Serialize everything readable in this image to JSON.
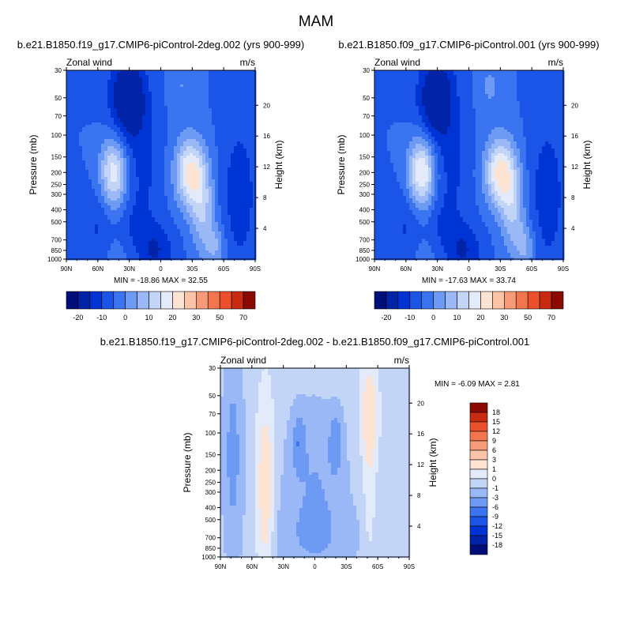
{
  "figure": {
    "title": "MAM"
  },
  "chart_data": [
    {
      "id": "p1",
      "type": "heatmap",
      "title": "b.e21.B1850.f19_g17.CMIP6-piControl-2deg.002 (yrs 900-999)",
      "left_label": "Zonal wind",
      "right_label": "m/s",
      "ylabel": "Pressure (mb)",
      "ylabel_right": "Height (km)",
      "x_ticks": [
        "90N",
        "60N",
        "30N",
        "0",
        "30S",
        "60S",
        "90S"
      ],
      "y_ticks": [
        "30",
        "50",
        "70",
        "100",
        "150",
        "200",
        "250",
        "300",
        "400",
        "500",
        "700",
        "850",
        "1000"
      ],
      "height_ticks": [
        "4",
        "8",
        "12",
        "16",
        "20"
      ],
      "stats": "MIN = -18.86   MAX = 32.55",
      "min": -18.86,
      "max": 32.55,
      "fields": [
        {
          "lat": 31,
          "p": 50,
          "sx": 12,
          "sy": 0.55,
          "a": -19
        },
        {
          "lat": 17,
          "p": 200,
          "sx": 12,
          "sy": 0.8,
          "a": -6
        },
        {
          "lat": 5,
          "p": 850,
          "sx": 12,
          "sy": 0.35,
          "a": -10
        },
        {
          "lat": 27,
          "p": 550,
          "sx": 10,
          "sy": 0.35,
          "a": -4
        },
        {
          "lat": 60,
          "p": 600,
          "sx": 10,
          "sy": 0.55,
          "a": -6
        },
        {
          "lat": -20,
          "p": 40,
          "sx": 8,
          "sy": 0.35,
          "a": 5
        },
        {
          "lat": -28,
          "p": 200,
          "sx": 10,
          "sy": 0.45,
          "a": 26
        },
        {
          "lat": -40,
          "p": 400,
          "sx": 8,
          "sy": 0.55,
          "a": 14
        },
        {
          "lat": -52,
          "p": 800,
          "sx": 7,
          "sy": 0.3,
          "a": 10
        },
        {
          "lat": -75,
          "p": 300,
          "sx": 12,
          "sy": 1.0,
          "a": -8
        },
        {
          "lat": 45,
          "p": 200,
          "sx": 9,
          "sy": 0.45,
          "a": 23
        },
        {
          "lat": 45,
          "p": 900,
          "sx": 14,
          "sy": 0.3,
          "a": 3
        }
      ],
      "background_value": -5.0,
      "colorbar": {
        "labels": [
          "-20",
          "-10",
          "0",
          "10",
          "20",
          "30",
          "50",
          "70"
        ],
        "levels": [
          -20,
          -15,
          -10,
          -5,
          0,
          5,
          10,
          15,
          20,
          25,
          30,
          40,
          50,
          60,
          70
        ],
        "colors": [
          "#000e7a",
          "#0023a8",
          "#0033d4",
          "#1a55e8",
          "#3a74f0",
          "#6d9af2",
          "#9ab8f5",
          "#c3d5f7",
          "#e3ebfa",
          "#fde3d2",
          "#fbc4a8",
          "#f79a78",
          "#f2754e",
          "#ec502b",
          "#c92a12",
          "#8a0a00"
        ]
      }
    },
    {
      "id": "p2",
      "type": "heatmap",
      "title": "b.e21.B1850.f09_g17.CMIP6-piControl.001 (yrs 900-999)",
      "left_label": "Zonal wind",
      "right_label": "m/s",
      "ylabel": "Pressure (mb)",
      "ylabel_right": "Height (km)",
      "x_ticks": [
        "90N",
        "60N",
        "30N",
        "0",
        "30S",
        "60S",
        "90S"
      ],
      "y_ticks": [
        "30",
        "50",
        "70",
        "100",
        "150",
        "200",
        "250",
        "300",
        "400",
        "500",
        "700",
        "850",
        "1000"
      ],
      "height_ticks": [
        "4",
        "8",
        "12",
        "16",
        "20"
      ],
      "stats": "MIN = -17.63   MAX = 33.74",
      "min": -17.63,
      "max": 33.74,
      "fields": [
        {
          "lat": 31,
          "p": 50,
          "sx": 12,
          "sy": 0.55,
          "a": -18
        },
        {
          "lat": 17,
          "p": 200,
          "sx": 12,
          "sy": 0.8,
          "a": -6
        },
        {
          "lat": 5,
          "p": 850,
          "sx": 12,
          "sy": 0.35,
          "a": -10
        },
        {
          "lat": 27,
          "p": 550,
          "sx": 10,
          "sy": 0.35,
          "a": -4
        },
        {
          "lat": 60,
          "p": 600,
          "sx": 10,
          "sy": 0.55,
          "a": -6
        },
        {
          "lat": -20,
          "p": 40,
          "sx": 8,
          "sy": 0.35,
          "a": 6
        },
        {
          "lat": -30,
          "p": 200,
          "sx": 10,
          "sy": 0.45,
          "a": 27
        },
        {
          "lat": -42,
          "p": 400,
          "sx": 8,
          "sy": 0.55,
          "a": 14
        },
        {
          "lat": -54,
          "p": 800,
          "sx": 7,
          "sy": 0.3,
          "a": 10
        },
        {
          "lat": -75,
          "p": 300,
          "sx": 12,
          "sy": 1.0,
          "a": -8
        },
        {
          "lat": 45,
          "p": 200,
          "sx": 9,
          "sy": 0.45,
          "a": 26
        },
        {
          "lat": 45,
          "p": 900,
          "sx": 14,
          "sy": 0.3,
          "a": 3
        }
      ],
      "background_value": -5.0,
      "colorbar": {
        "labels": [
          "-20",
          "-10",
          "0",
          "10",
          "20",
          "30",
          "50",
          "70"
        ],
        "levels": [
          -20,
          -15,
          -10,
          -5,
          0,
          5,
          10,
          15,
          20,
          25,
          30,
          40,
          50,
          60,
          70
        ],
        "colors": [
          "#000e7a",
          "#0023a8",
          "#0033d4",
          "#1a55e8",
          "#3a74f0",
          "#6d9af2",
          "#9ab8f5",
          "#c3d5f7",
          "#e3ebfa",
          "#fde3d2",
          "#fbc4a8",
          "#f79a78",
          "#f2754e",
          "#ec502b",
          "#c92a12",
          "#8a0a00"
        ]
      }
    },
    {
      "id": "p3",
      "type": "heatmap",
      "title": "b.e21.B1850.f19_g17.CMIP6-piControl-2deg.002 - b.e21.B1850.f09_g17.CMIP6-piControl.001",
      "left_label": "Zonal wind",
      "right_label": "m/s",
      "ylabel": "Pressure (mb)",
      "ylabel_right": "Height (km)",
      "x_ticks": [
        "90N",
        "60N",
        "30N",
        "0",
        "30S",
        "60S",
        "90S"
      ],
      "y_ticks": [
        "30",
        "50",
        "70",
        "100",
        "150",
        "200",
        "250",
        "300",
        "400",
        "500",
        "700",
        "850",
        "1000"
      ],
      "height_ticks": [
        "4",
        "8",
        "12",
        "16",
        "20"
      ],
      "stats": "MIN =  -6.09   MAX =   2.81",
      "min": -6.09,
      "max": 2.81,
      "fields": [
        {
          "lat": 78,
          "p": 150,
          "sx": 6,
          "sy": 1.2,
          "a": -3.5
        },
        {
          "lat": 47,
          "p": 300,
          "sx": 6,
          "sy": 1.3,
          "a": 2.5
        },
        {
          "lat": 15,
          "p": 120,
          "sx": 4,
          "sy": 0.35,
          "a": -4.5
        },
        {
          "lat": -20,
          "p": 120,
          "sx": 4,
          "sy": 0.35,
          "a": -4.5
        },
        {
          "lat": 0,
          "p": 250,
          "sx": 18,
          "sy": 0.9,
          "a": -2.5
        },
        {
          "lat": 0,
          "p": 700,
          "sx": 25,
          "sy": 0.45,
          "a": -2.0
        },
        {
          "lat": -52,
          "p": 70,
          "sx": 6,
          "sy": 0.7,
          "a": 2.5
        },
        {
          "lat": -52,
          "p": 400,
          "sx": 4,
          "sy": 0.8,
          "a": 1.0
        }
      ],
      "background_value": -0.5,
      "colorbar": {
        "labels": [
          "18",
          "15",
          "12",
          "9",
          "6",
          "3",
          "1",
          "0",
          "-1",
          "-3",
          "-6",
          "-9",
          "-12",
          "-15",
          "-18"
        ],
        "levels": [
          -18,
          -15,
          -12,
          -9,
          -6,
          -3,
          -1,
          0,
          1,
          3,
          6,
          9,
          12,
          15,
          18
        ],
        "colors": [
          "#000e7a",
          "#0023a8",
          "#0033d4",
          "#1a55e8",
          "#3a74f0",
          "#6d9af2",
          "#9ab8f5",
          "#c3d5f7",
          "#e3ebfa",
          "#fde3d2",
          "#fbc4a8",
          "#f79a78",
          "#f2754e",
          "#ec502b",
          "#c92a12",
          "#8a0a00"
        ]
      }
    }
  ]
}
